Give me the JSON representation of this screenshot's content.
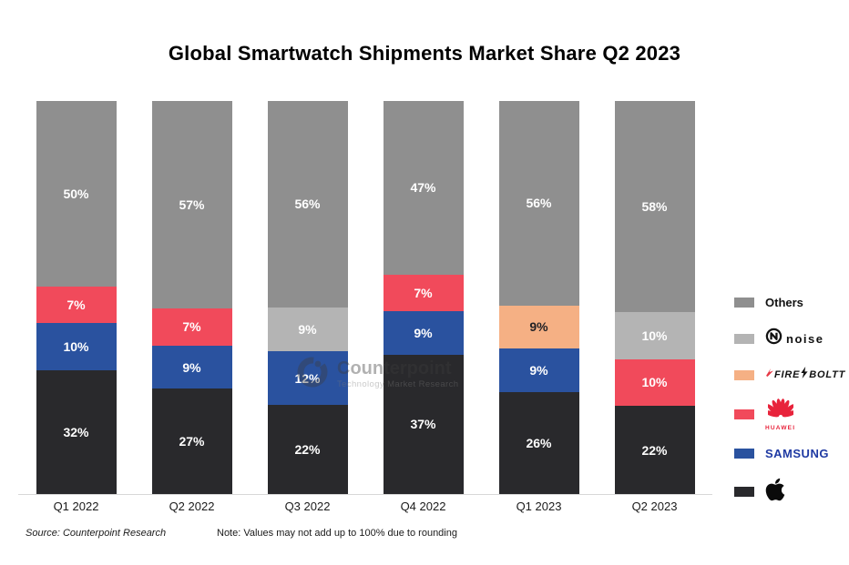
{
  "title": "Global Smartwatch Shipments Market Share Q2 2023",
  "watermark": {
    "brand": "Counterpoint",
    "tagline": "Technology Market Research"
  },
  "footer": {
    "source": "Source: Counterpoint Research",
    "note": "Note: Values may not add up to 100% due to rounding"
  },
  "colors": {
    "apple": "#29292c",
    "samsung": "#2a529f",
    "huawei": "#f14a5b",
    "fireboltt": "#f5b084",
    "noise": "#b4b4b4",
    "others": "#8f8f8f"
  },
  "legend": {
    "others": "Others",
    "noise": "noise",
    "fireboltt_left": "FIRE",
    "fireboltt_right": "BOLTT",
    "huawei": "HUAWEI",
    "samsung": "SAMSUNG"
  },
  "chart_data": {
    "type": "bar",
    "stacked": true,
    "title": "Global Smartwatch Shipments Market Share Q2 2023",
    "categories": [
      "Q1 2022",
      "Q2 2022",
      "Q3 2022",
      "Q4 2022",
      "Q1 2023",
      "Q2 2023"
    ],
    "series": [
      {
        "name": "Apple",
        "color_key": "apple",
        "label_color": "#ffffff",
        "values": [
          32,
          27,
          22,
          37,
          26,
          22
        ]
      },
      {
        "name": "Samsung",
        "color_key": "samsung",
        "label_color": "#ffffff",
        "values": [
          10,
          9,
          12,
          9,
          9,
          null
        ]
      },
      {
        "name": "Huawei",
        "color_key": "huawei",
        "label_color": "#ffffff",
        "values": [
          7,
          7,
          null,
          7,
          null,
          10
        ]
      },
      {
        "name": "Noise",
        "color_key": "noise",
        "label_color": "#ffffff",
        "values": [
          null,
          null,
          9,
          null,
          null,
          10
        ]
      },
      {
        "name": "Fire-Boltt",
        "color_key": "fireboltt",
        "label_color": "#222226",
        "values": [
          null,
          null,
          null,
          null,
          9,
          null
        ]
      },
      {
        "name": "Others",
        "color_key": "others",
        "label_color": "#ffffff",
        "values": [
          50,
          57,
          56,
          47,
          56,
          58
        ]
      }
    ],
    "value_suffix": "%",
    "ylim": [
      0,
      100
    ],
    "grid": false,
    "legend_position": "right",
    "stack_order": "series order bottom to top"
  }
}
